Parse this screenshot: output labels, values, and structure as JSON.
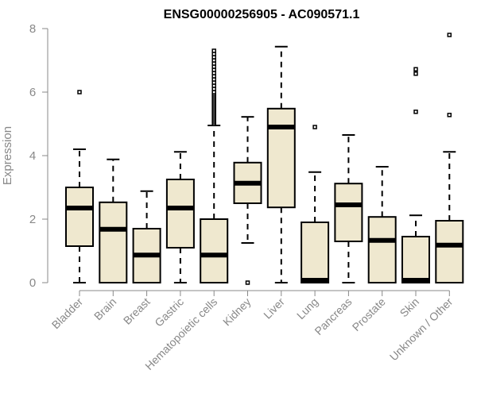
{
  "chart_data": {
    "type": "box",
    "title": "ENSG00000256905 - AC090571.1",
    "xlabel": "",
    "ylabel": "Expression",
    "ylim": [
      0,
      8
    ],
    "yticks": [
      0,
      2,
      4,
      6,
      8
    ],
    "grid": false,
    "legend": "none",
    "box_fill": "#efe8cf",
    "box_stroke": "#000000",
    "median_color": "#000000",
    "axis_color": "#888888",
    "categories": [
      "Bladder",
      "Brain",
      "Breast",
      "Gastric",
      "Hematopoietic cells",
      "Kidney",
      "Liver",
      "Lung",
      "Pancreas",
      "Prostate",
      "Skin",
      "Unknown / Other"
    ],
    "boxes": [
      {
        "category": "Bladder",
        "min": 0,
        "q1": 1.15,
        "median": 2.35,
        "q3": 3.0,
        "max": 4.2,
        "outliers": [
          6.0
        ]
      },
      {
        "category": "Brain",
        "min": 0,
        "q1": 0,
        "median": 1.68,
        "q3": 2.53,
        "max": 3.88,
        "outliers": []
      },
      {
        "category": "Breast",
        "min": 0,
        "q1": 0,
        "median": 0.87,
        "q3": 1.7,
        "max": 2.88,
        "outliers": []
      },
      {
        "category": "Gastric",
        "min": 0,
        "q1": 1.1,
        "median": 2.35,
        "q3": 3.25,
        "max": 4.12,
        "outliers": []
      },
      {
        "category": "Hematopoietic cells",
        "min": 0,
        "q1": 0,
        "median": 0.87,
        "q3": 2.0,
        "max": 4.95,
        "outliers": [
          5.0,
          5.05,
          5.1,
          5.15,
          5.2,
          5.25,
          5.3,
          5.35,
          5.4,
          5.45,
          5.5,
          5.55,
          5.6,
          5.65,
          5.7,
          5.75,
          5.8,
          5.85,
          5.9,
          5.95,
          6.0,
          6.1,
          6.2,
          6.3,
          6.4,
          6.5,
          6.6,
          6.7,
          6.8,
          6.9,
          7.0,
          7.1,
          7.2,
          7.3
        ]
      },
      {
        "category": "Kidney",
        "min": 1.25,
        "q1": 2.5,
        "median": 3.13,
        "q3": 3.78,
        "max": 5.22,
        "outliers": [
          0.0
        ]
      },
      {
        "category": "Liver",
        "min": 0,
        "q1": 2.37,
        "median": 4.9,
        "q3": 5.48,
        "max": 7.43,
        "outliers": []
      },
      {
        "category": "Lung",
        "min": 0,
        "q1": 0,
        "median": 0.02,
        "q3": 1.9,
        "max": 3.48,
        "outliers": [
          4.9
        ]
      },
      {
        "category": "Pancreas",
        "min": 0,
        "q1": 1.3,
        "median": 2.45,
        "q3": 3.12,
        "max": 4.65,
        "outliers": []
      },
      {
        "category": "Prostate",
        "min": 0,
        "q1": 0,
        "median": 1.33,
        "q3": 2.07,
        "max": 3.65,
        "outliers": []
      },
      {
        "category": "Skin",
        "min": 0,
        "q1": 0,
        "median": 0.02,
        "q3": 1.45,
        "max": 2.12,
        "outliers": [
          5.38,
          6.58,
          6.72
        ]
      },
      {
        "category": "Unknown / Other",
        "min": 0,
        "q1": 0,
        "median": 1.18,
        "q3": 1.95,
        "max": 4.12,
        "outliers": [
          5.28,
          7.8
        ]
      }
    ]
  }
}
